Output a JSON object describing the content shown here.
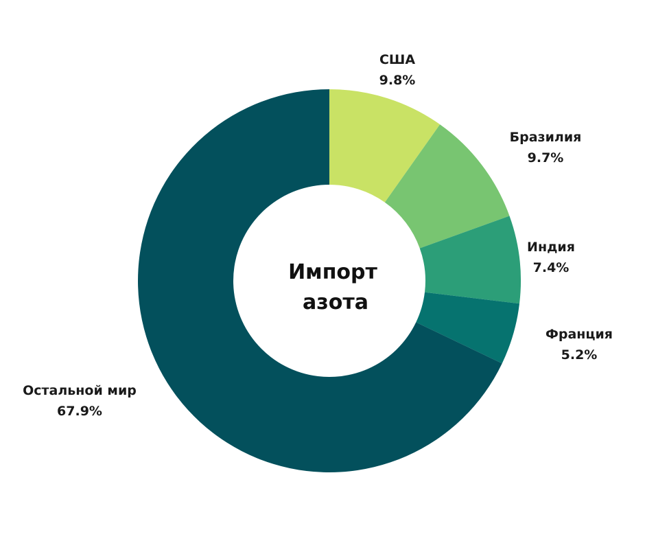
{
  "chart_data": {
    "type": "pie",
    "title": "Импорт азота",
    "title_lines": [
      "Импорт",
      "азота"
    ],
    "donut": true,
    "slices": [
      {
        "label": "США",
        "value": 9.8,
        "value_label": "9.8%",
        "color": "#c9e265"
      },
      {
        "label": "Бразилия",
        "value": 9.7,
        "value_label": "9.7%",
        "color": "#78c571"
      },
      {
        "label": "Индия",
        "value": 7.4,
        "value_label": "7.4%",
        "color": "#2c9e78"
      },
      {
        "label": "Франция",
        "value": 5.2,
        "value_label": "5.2%",
        "color": "#06736f"
      },
      {
        "label": "Остальной мир",
        "value": 67.9,
        "value_label": "67.9%",
        "color": "#03505c"
      }
    ],
    "start_angle": "12 o'clock",
    "direction": "clockwise",
    "legend": "none"
  }
}
